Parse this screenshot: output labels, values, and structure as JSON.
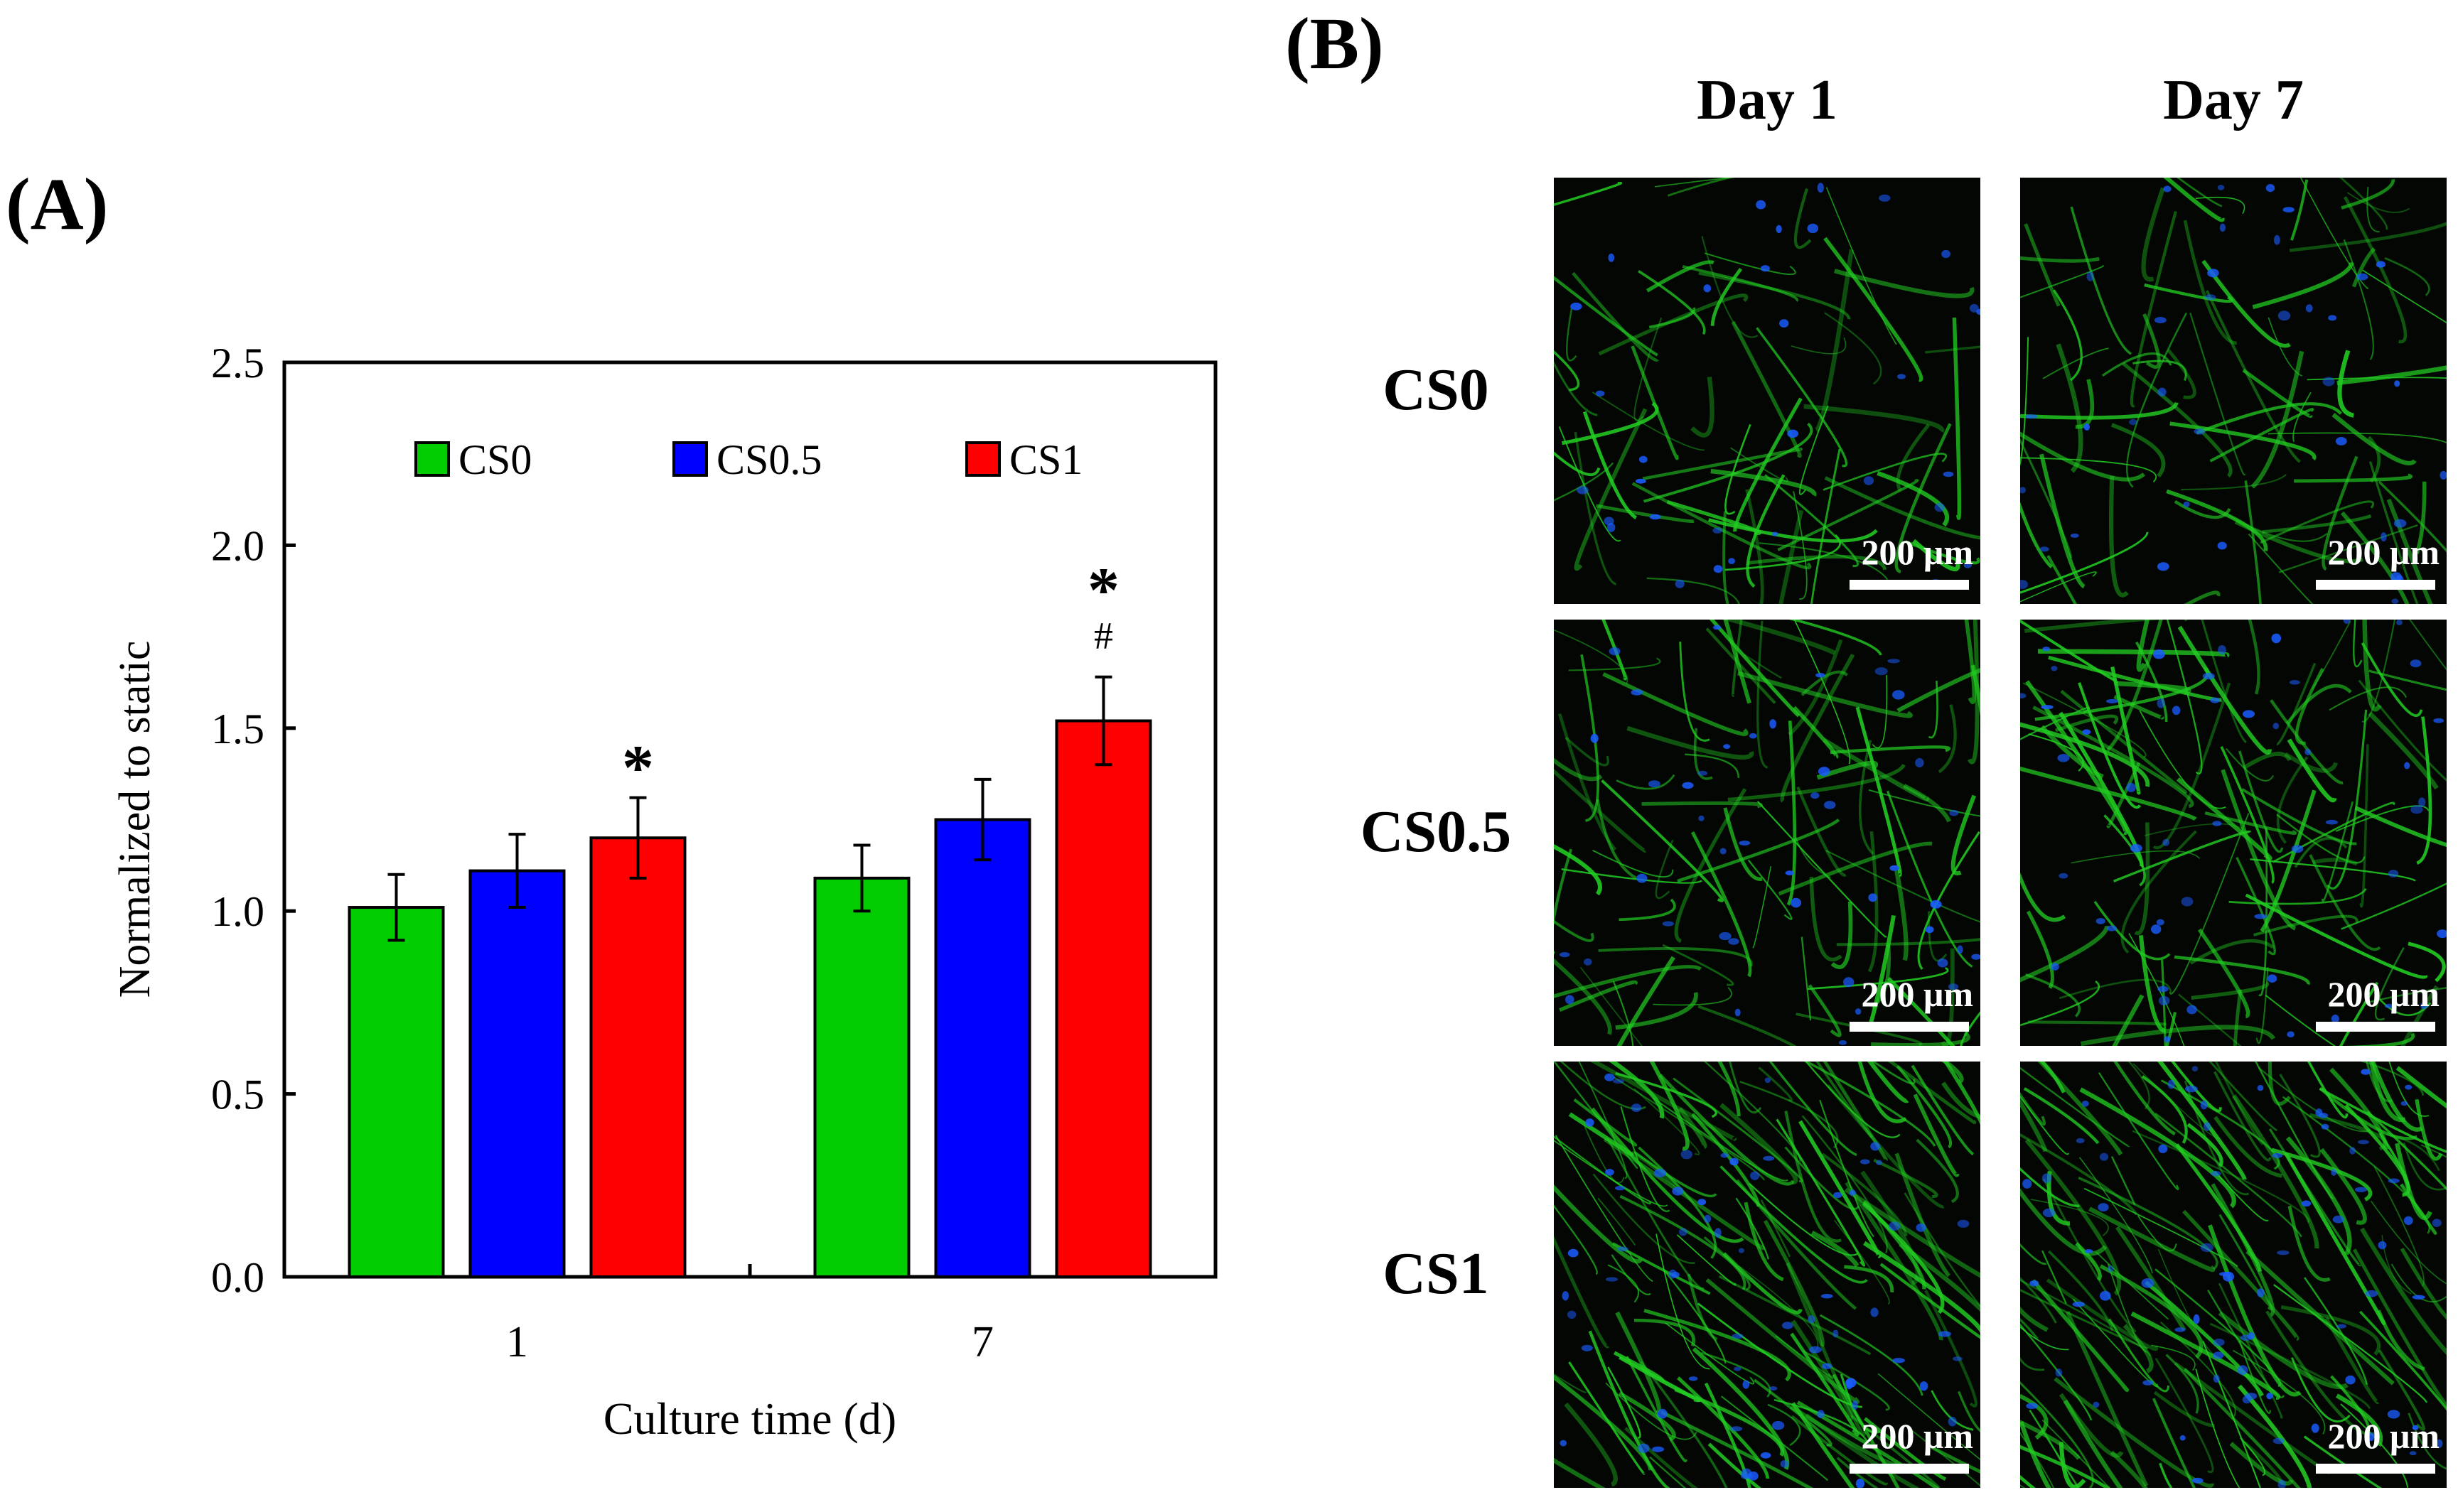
{
  "panels": {
    "a_label": "(A)",
    "b_label": "(B)"
  },
  "chart_data": {
    "type": "bar",
    "categories": [
      "1",
      "7"
    ],
    "series": [
      {
        "name": "CS0",
        "color": "#00cc00",
        "values": [
          1.01,
          1.09
        ],
        "errors": [
          0.09,
          0.09
        ]
      },
      {
        "name": "CS0.5",
        "color": "#0000ff",
        "values": [
          1.11,
          1.25
        ],
        "errors": [
          0.1,
          0.11
        ]
      },
      {
        "name": "CS1",
        "color": "#ff0000",
        "values": [
          1.2,
          1.52
        ],
        "errors": [
          0.11,
          0.12
        ]
      }
    ],
    "ylim": [
      0,
      2.5
    ],
    "yticks": [
      "0.0",
      "0.5",
      "1.0",
      "1.5",
      "2.0",
      "2.5"
    ],
    "xlabel": "Culture time (d)",
    "ylabel": "Normalized to static",
    "legend_position": "top",
    "annotations": [
      {
        "category": "1",
        "series": "CS1",
        "marks": [
          "*"
        ]
      },
      {
        "category": "7",
        "series": "CS1",
        "marks": [
          "*",
          "#"
        ]
      }
    ]
  },
  "micrographs": {
    "columns": [
      "Day 1",
      "Day 7"
    ],
    "rows": [
      "CS0",
      "CS0.5",
      "CS1"
    ],
    "scale_bar_label": "200 μm",
    "stain_colors": {
      "actin": "#22cc22",
      "nuclei": "#1a5cff"
    }
  }
}
